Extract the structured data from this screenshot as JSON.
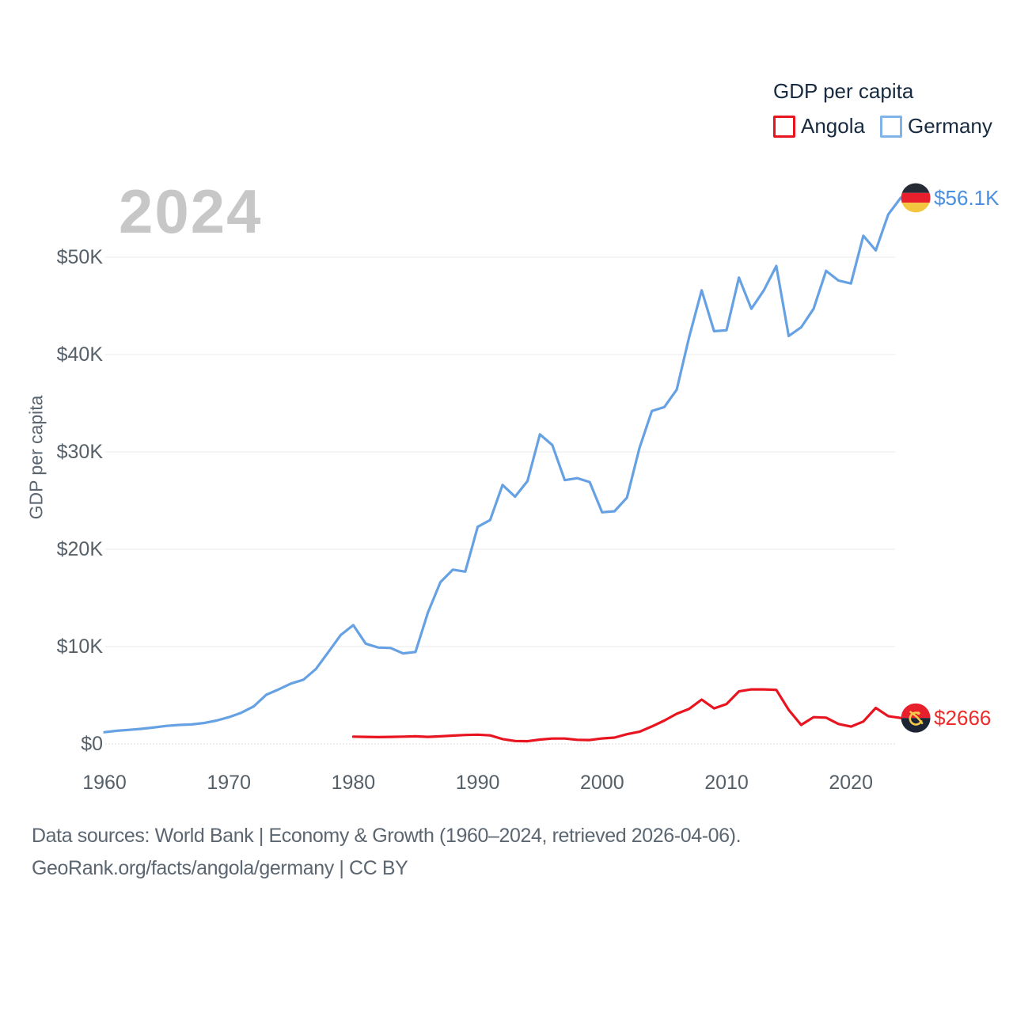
{
  "watermark_year": "2024",
  "legend": {
    "title": "GDP per capita",
    "items": [
      {
        "label": "Angola",
        "color": "#e8141f"
      },
      {
        "label": "Germany",
        "color": "#7fb3e9"
      }
    ]
  },
  "chart_data": {
    "type": "line",
    "title": "GDP per capita",
    "xlabel": "",
    "ylabel": "GDP per capita",
    "x_axis": {
      "range": [
        1960,
        2024
      ],
      "ticks": [
        {
          "value": 1960,
          "label": "1960"
        },
        {
          "value": 1970,
          "label": "1970"
        },
        {
          "value": 1980,
          "label": "1980"
        },
        {
          "value": 1990,
          "label": "1990"
        },
        {
          "value": 2000,
          "label": "2000"
        },
        {
          "value": 2010,
          "label": "2010"
        },
        {
          "value": 2020,
          "label": "2020"
        }
      ]
    },
    "y_axis": {
      "range_usd": [
        0,
        57500
      ],
      "grid": true,
      "ticks": [
        {
          "value": 0,
          "label": "$0"
        },
        {
          "value": 10000,
          "label": "$10K"
        },
        {
          "value": 20000,
          "label": "$20K"
        },
        {
          "value": 30000,
          "label": "$30K"
        },
        {
          "value": 40000,
          "label": "$40K"
        },
        {
          "value": 50000,
          "label": "$50K"
        }
      ]
    },
    "legend_position": "top-right",
    "series": [
      {
        "name": "Angola",
        "color": "#e8141f",
        "label_color": "#ee2b2b",
        "flag": "angola",
        "flag_colors": [
          "#e8202e",
          "#1d2434",
          "#f6c94a"
        ],
        "start_year": 1980,
        "end_year": 2024,
        "end_label": "$2666",
        "end_value_usd": 2666,
        "values_usd": [
          750,
          720,
          700,
          720,
          750,
          780,
          720,
          780,
          850,
          920,
          950,
          880,
          500,
          300,
          280,
          450,
          550,
          550,
          420,
          400,
          560,
          650,
          1000,
          1250,
          1800,
          2400,
          3100,
          3600,
          4550,
          3650,
          4100,
          5400,
          5600,
          5600,
          5550,
          3500,
          1950,
          2750,
          2700,
          2050,
          1780,
          2300,
          3700,
          2850,
          2666
        ]
      },
      {
        "name": "Germany",
        "color": "#66a1e3",
        "label_color": "#4a90e0",
        "flag": "germany",
        "flag_colors": [
          "#272b35",
          "#e8202e",
          "#f2c63f"
        ],
        "start_year": 1960,
        "end_year": 2024,
        "end_label": "$56.1K",
        "end_value_usd": 56100,
        "values_usd": [
          1200,
          1350,
          1450,
          1550,
          1700,
          1850,
          1950,
          2000,
          2150,
          2400,
          2750,
          3200,
          3850,
          5050,
          5600,
          6200,
          6600,
          7700,
          9450,
          11200,
          12200,
          10300,
          9900,
          9850,
          9300,
          9450,
          13500,
          16600,
          17900,
          17700,
          22300,
          23000,
          26600,
          25400,
          27000,
          31800,
          30700,
          27100,
          27300,
          26900,
          23800,
          23900,
          25300,
          30400,
          34200,
          34600,
          36400,
          41800,
          46600,
          42400,
          42500,
          47900,
          44700,
          46600,
          49100,
          41900,
          42800,
          44700,
          48600,
          47600,
          47300,
          52200,
          50700,
          54400,
          56100
        ]
      }
    ]
  },
  "footer": {
    "line1": "Data sources: World Bank | Economy & Growth (1960–2024, retrieved 2026-04-06).",
    "line2": "GeoRank.org/facts/angola/germany | CC BY"
  }
}
